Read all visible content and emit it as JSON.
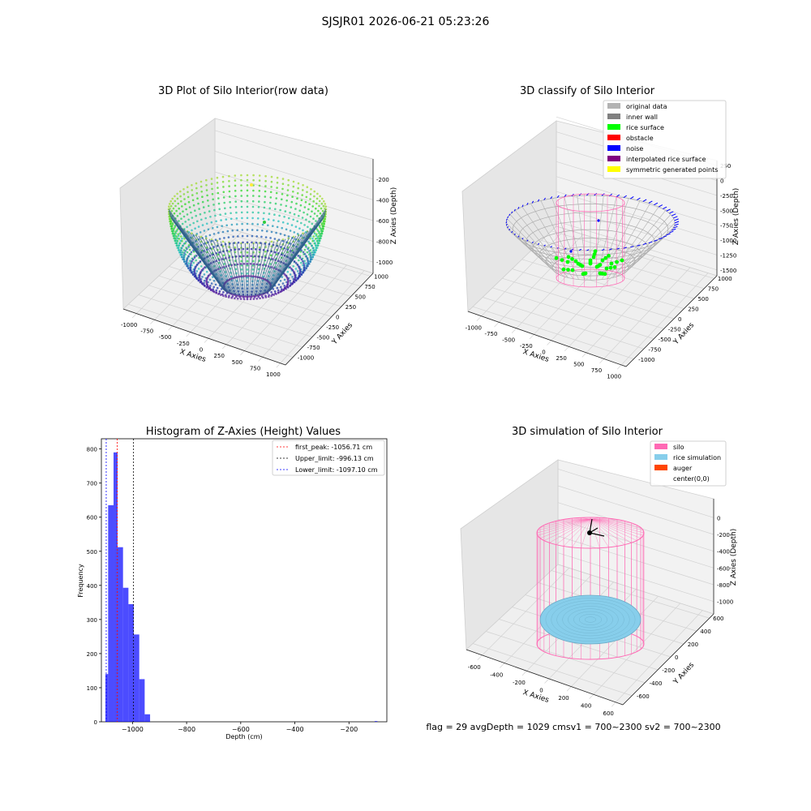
{
  "suptitle": "SJSJR01 2026-06-21 05:23:26",
  "status_text": "flag = 29  avgDepth = 1029 cmsv1 = 700~2300  sv2 = 700~2300",
  "panel_raw": {
    "title": "3D Plot of Silo Interior(row data)",
    "xlabel": "X Axies",
    "ylabel": "Y Axies",
    "zlabel": "Z Axies (Depth)",
    "xticks": [
      "-1000",
      "-750",
      "-500",
      "-250",
      "0",
      "250",
      "500",
      "750",
      "1000"
    ],
    "yticks": [
      "-1000",
      "-750",
      "-500",
      "-250",
      "0",
      "250",
      "500",
      "750",
      "1000"
    ],
    "zticks": [
      "-200",
      "-400",
      "-600",
      "-800",
      "-1000"
    ]
  },
  "panel_classify": {
    "title": "3D classify of Silo Interior",
    "xlabel": "X Axies",
    "ylabel": "Y Axies",
    "zlabel": "Z Axies (Depth)",
    "xticks": [
      "-1000",
      "-750",
      "-500",
      "-250",
      "0",
      "250",
      "500",
      "750",
      "1000"
    ],
    "yticks": [
      "-1000",
      "-750",
      "-500",
      "-250",
      "0",
      "250",
      "500",
      "750",
      "1000"
    ],
    "zticks": [
      "250",
      "0",
      "-250",
      "-500",
      "-750",
      "-1000",
      "-1250",
      "-1500"
    ],
    "legend": [
      {
        "label": "original data",
        "color": "#b3b3b3"
      },
      {
        "label": "inner wall",
        "color": "#808080"
      },
      {
        "label": "rice surface",
        "color": "#00ff00"
      },
      {
        "label": "obstacle",
        "color": "#ff0000"
      },
      {
        "label": "noise",
        "color": "#0000ff"
      },
      {
        "label": "interpolated rice surface",
        "color": "#800080"
      },
      {
        "label": "symmetric generated points",
        "color": "#ffff00"
      }
    ]
  },
  "panel_sim": {
    "title": "3D simulation of Silo Interior",
    "xlabel": "X Axies",
    "ylabel": "Y Axies",
    "zlabel": "Z Axies (Depth)",
    "xticks": [
      "-600",
      "-400",
      "-200",
      "0",
      "200",
      "400",
      "600"
    ],
    "yticks": [
      "-600",
      "-400",
      "-200",
      "0",
      "200",
      "400",
      "600"
    ],
    "zticks": [
      "0",
      "-200",
      "-400",
      "-600",
      "-800",
      "-1000"
    ],
    "legend": [
      {
        "label": "silo",
        "color": "#ff69b4"
      },
      {
        "label": "rice simulation",
        "color": "#87ceeb"
      },
      {
        "label": "auger",
        "color": "#ff4500"
      },
      {
        "label": "center(0,0)",
        "color": "#ffffff"
      }
    ]
  },
  "chart_data": {
    "type": "bar",
    "title": "Histogram of Z-Axies (Height) Values",
    "xlabel": "Depth (cm)",
    "ylabel": "Frequency",
    "xlim": [
      -1115,
      -60
    ],
    "ylim": [
      0,
      830
    ],
    "xticks": [
      -1000,
      -800,
      -600,
      -400,
      -200
    ],
    "yticks": [
      0,
      100,
      200,
      300,
      400,
      500,
      600,
      700,
      800
    ],
    "bar_color": "#0000ff",
    "bins": [
      {
        "x0": -1100,
        "x1": -1090,
        "count": 140
      },
      {
        "x0": -1090,
        "x1": -1070,
        "count": 635
      },
      {
        "x0": -1070,
        "x1": -1055,
        "count": 790
      },
      {
        "x0": -1055,
        "x1": -1035,
        "count": 512
      },
      {
        "x0": -1035,
        "x1": -1015,
        "count": 393
      },
      {
        "x0": -1015,
        "x1": -995,
        "count": 345
      },
      {
        "x0": -995,
        "x1": -975,
        "count": 256
      },
      {
        "x0": -975,
        "x1": -955,
        "count": 125
      },
      {
        "x0": -955,
        "x1": -935,
        "count": 22
      },
      {
        "x0": -105,
        "x1": -95,
        "count": 2
      }
    ],
    "vlines": [
      {
        "label": "first_peak: -1056.71 cm",
        "value": -1056.71,
        "color": "#ff0000"
      },
      {
        "label": "Upper_limit: -996.13 cm",
        "value": -996.13,
        "color": "#000000"
      },
      {
        "label": "Lower_limit: -1097.10 cm",
        "value": -1097.1,
        "color": "#0000ff"
      }
    ]
  }
}
